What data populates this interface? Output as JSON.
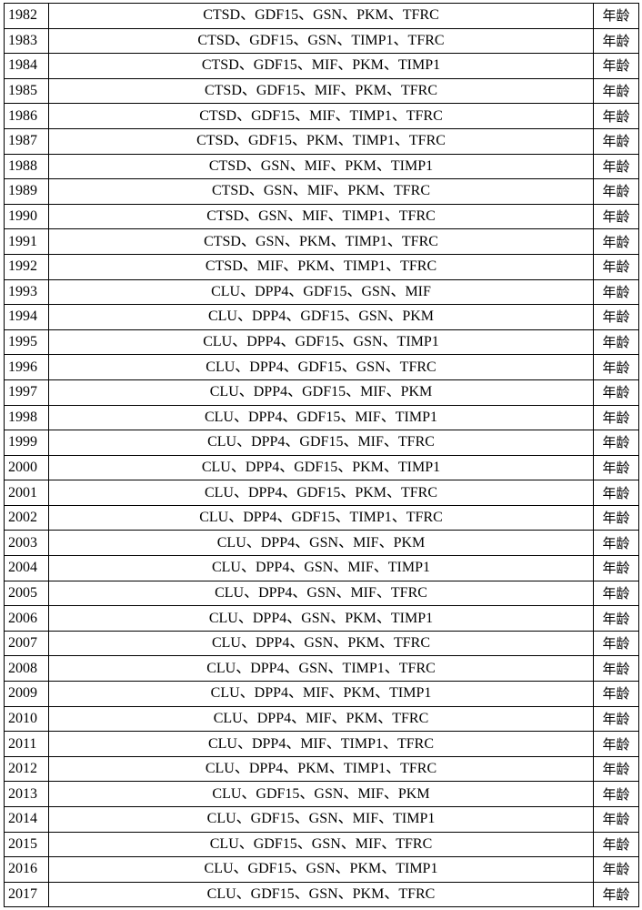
{
  "table": {
    "rows": [
      [
        "1982",
        "CTSD、GDF15、GSN、PKM、TFRC",
        "年龄"
      ],
      [
        "1983",
        "CTSD、GDF15、GSN、TIMP1、TFRC",
        "年龄"
      ],
      [
        "1984",
        "CTSD、GDF15、MIF、PKM、TIMP1",
        "年龄"
      ],
      [
        "1985",
        "CTSD、GDF15、MIF、PKM、TFRC",
        "年龄"
      ],
      [
        "1986",
        "CTSD、GDF15、MIF、TIMP1、TFRC",
        "年龄"
      ],
      [
        "1987",
        "CTSD、GDF15、PKM、TIMP1、TFRC",
        "年龄"
      ],
      [
        "1988",
        "CTSD、GSN、MIF、PKM、TIMP1",
        "年龄"
      ],
      [
        "1989",
        "CTSD、GSN、MIF、PKM、TFRC",
        "年龄"
      ],
      [
        "1990",
        "CTSD、GSN、MIF、TIMP1、TFRC",
        "年龄"
      ],
      [
        "1991",
        "CTSD、GSN、PKM、TIMP1、TFRC",
        "年龄"
      ],
      [
        "1992",
        "CTSD、MIF、PKM、TIMP1、TFRC",
        "年龄"
      ],
      [
        "1993",
        "CLU、DPP4、GDF15、GSN、MIF",
        "年龄"
      ],
      [
        "1994",
        "CLU、DPP4、GDF15、GSN、PKM",
        "年龄"
      ],
      [
        "1995",
        "CLU、DPP4、GDF15、GSN、TIMP1",
        "年龄"
      ],
      [
        "1996",
        "CLU、DPP4、GDF15、GSN、TFRC",
        "年龄"
      ],
      [
        "1997",
        "CLU、DPP4、GDF15、MIF、PKM",
        "年龄"
      ],
      [
        "1998",
        "CLU、DPP4、GDF15、MIF、TIMP1",
        "年龄"
      ],
      [
        "1999",
        "CLU、DPP4、GDF15、MIF、TFRC",
        "年龄"
      ],
      [
        "2000",
        "CLU、DPP4、GDF15、PKM、TIMP1",
        "年龄"
      ],
      [
        "2001",
        "CLU、DPP4、GDF15、PKM、TFRC",
        "年龄"
      ],
      [
        "2002",
        "CLU、DPP4、GDF15、TIMP1、TFRC",
        "年龄"
      ],
      [
        "2003",
        "CLU、DPP4、GSN、MIF、PKM",
        "年龄"
      ],
      [
        "2004",
        "CLU、DPP4、GSN、MIF、TIMP1",
        "年龄"
      ],
      [
        "2005",
        "CLU、DPP4、GSN、MIF、TFRC",
        "年龄"
      ],
      [
        "2006",
        "CLU、DPP4、GSN、PKM、TIMP1",
        "年龄"
      ],
      [
        "2007",
        "CLU、DPP4、GSN、PKM、TFRC",
        "年龄"
      ],
      [
        "2008",
        "CLU、DPP4、GSN、TIMP1、TFRC",
        "年龄"
      ],
      [
        "2009",
        "CLU、DPP4、MIF、PKM、TIMP1",
        "年龄"
      ],
      [
        "2010",
        "CLU、DPP4、MIF、PKM、TFRC",
        "年龄"
      ],
      [
        "2011",
        "CLU、DPP4、MIF、TIMP1、TFRC",
        "年龄"
      ],
      [
        "2012",
        "CLU、DPP4、PKM、TIMP1、TFRC",
        "年龄"
      ],
      [
        "2013",
        "CLU、GDF15、GSN、MIF、PKM",
        "年龄"
      ],
      [
        "2014",
        "CLU、GDF15、GSN、MIF、TIMP1",
        "年龄"
      ],
      [
        "2015",
        "CLU、GDF15、GSN、MIF、TFRC",
        "年龄"
      ],
      [
        "2016",
        "CLU、GDF15、GSN、PKM、TIMP1",
        "年龄"
      ],
      [
        "2017",
        "CLU、GDF15、GSN、PKM、TFRC",
        "年龄"
      ]
    ]
  }
}
